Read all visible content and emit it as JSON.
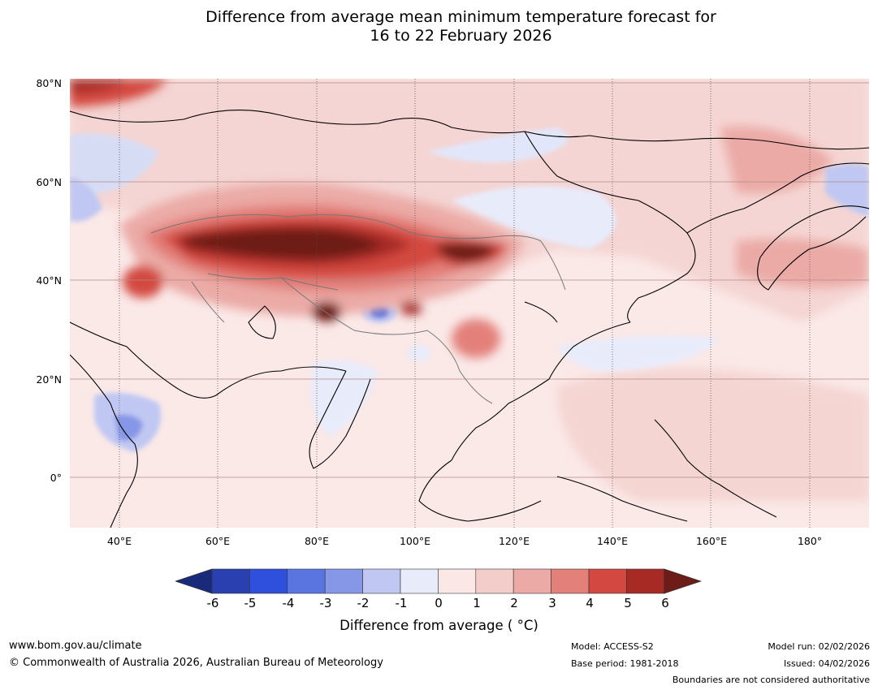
{
  "title_line1": "Difference from average mean minimum temperature forecast for",
  "title_line2": "16 to 22 February 2026",
  "map": {
    "lat_labels": [
      "80°N",
      "60°N",
      "40°N",
      "20°N",
      "0°"
    ],
    "lon_labels": [
      "40°E",
      "60°E",
      "80°E",
      "100°E",
      "120°E",
      "140°E",
      "160°E",
      "180°"
    ],
    "background_color": "#fbe9e8"
  },
  "colorbar": {
    "ticks": [
      "-6",
      "-5",
      "-4",
      "-3",
      "-2",
      "-1",
      "0",
      "1",
      "2",
      "3",
      "4",
      "5",
      "6"
    ],
    "colors": [
      "#1a2a7a",
      "#2a3fb0",
      "#2f4fdd",
      "#5b75e0",
      "#8797e8",
      "#c0c7f2",
      "#e8ebfa",
      "#fbe8e6",
      "#f3cdca",
      "#ebaaa6",
      "#e3807a",
      "#d34840",
      "#a82a25",
      "#6e1c18"
    ],
    "label": "Difference from average ( °C)"
  },
  "footer": {
    "website": "www.bom.gov.au/climate",
    "copyright": "© Commonwealth of Australia 2026, Australian Bureau of Meteorology",
    "model": "Model: ACCESS-S2",
    "base_period": "Base period: 1981-2018",
    "model_run": "Model run: 02/02/2026",
    "issued": "Issued: 04/02/2026",
    "boundaries_note": "Boundaries are not considered authoritative"
  }
}
